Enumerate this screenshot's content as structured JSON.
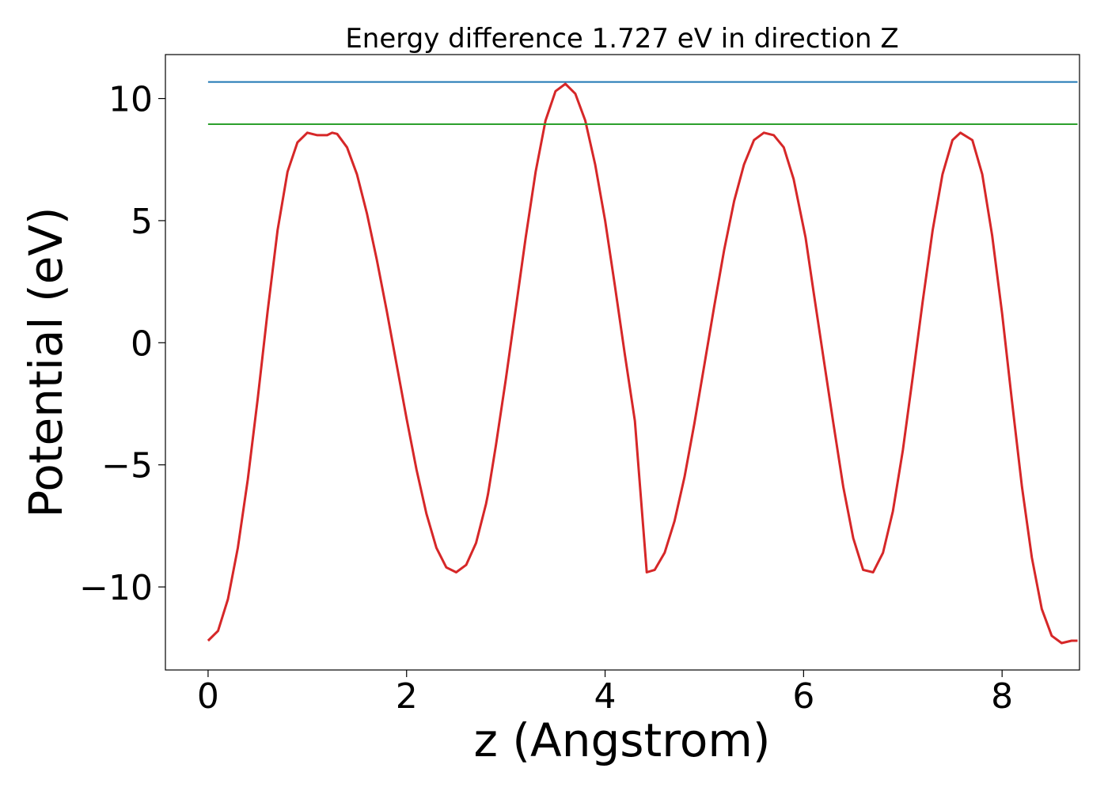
{
  "chart_data": {
    "type": "line",
    "title": "Energy difference 1.727 eV in direction Z",
    "xlabel": "z (Angstrom)",
    "ylabel": "Potential (eV)",
    "xlim": [
      -0.43,
      8.78
    ],
    "ylim": [
      -13.4,
      11.8
    ],
    "x_ticks": [
      0,
      2,
      4,
      6,
      8
    ],
    "x_tick_labels": [
      "0",
      "2",
      "4",
      "6",
      "8"
    ],
    "y_ticks": [
      -10,
      -5,
      0,
      5,
      10
    ],
    "y_tick_labels": [
      "−10",
      "−5",
      "0",
      "5",
      "10"
    ],
    "grid": false,
    "legend": "none",
    "series": [
      {
        "color": "#d62728",
        "style": "curve",
        "x": [
          0.0,
          0.1,
          0.2,
          0.3,
          0.4,
          0.5,
          0.6,
          0.7,
          0.8,
          0.9,
          1.0,
          1.1,
          1.2,
          1.25,
          1.3,
          1.4,
          1.5,
          1.6,
          1.7,
          1.8,
          1.9,
          2.0,
          2.1,
          2.2,
          2.3,
          2.4,
          2.5,
          2.6,
          2.7,
          2.8,
          2.82,
          2.9,
          3.0,
          3.1,
          3.2,
          3.3,
          3.4,
          3.5,
          3.6,
          3.7,
          3.8,
          3.9,
          4.0,
          4.1,
          4.2,
          4.3,
          4.42,
          4.5,
          4.6,
          4.7,
          4.8,
          4.9,
          5.0,
          5.1,
          5.2,
          5.3,
          5.4,
          5.5,
          5.6,
          5.7,
          5.8,
          5.9,
          6.0,
          6.02,
          6.1,
          6.2,
          6.3,
          6.4,
          6.5,
          6.6,
          6.7,
          6.8,
          6.9,
          7.0,
          7.1,
          7.2,
          7.3,
          7.4,
          7.5,
          7.58,
          7.7,
          7.8,
          7.9,
          8.0,
          8.1,
          8.2,
          8.3,
          8.4,
          8.5,
          8.6,
          8.7,
          8.76
        ],
        "y": [
          -12.2,
          -11.8,
          -10.5,
          -8.4,
          -5.6,
          -2.3,
          1.3,
          4.6,
          7.0,
          8.2,
          8.6,
          8.5,
          8.5,
          8.6,
          8.55,
          8.0,
          6.9,
          5.3,
          3.4,
          1.3,
          -0.9,
          -3.1,
          -5.2,
          -7.0,
          -8.4,
          -9.2,
          -9.4,
          -9.1,
          -8.2,
          -6.6,
          -6.2,
          -4.2,
          -1.5,
          1.4,
          4.3,
          7.0,
          9.1,
          10.3,
          10.6,
          10.2,
          9.1,
          7.3,
          5.0,
          2.3,
          -0.5,
          -3.2,
          -9.4,
          -9.3,
          -8.6,
          -7.3,
          -5.5,
          -3.3,
          -0.9,
          1.5,
          3.8,
          5.8,
          7.3,
          8.3,
          8.6,
          8.5,
          8.0,
          6.7,
          4.7,
          4.3,
          2.1,
          -0.6,
          -3.3,
          -5.9,
          -8.0,
          -9.3,
          -9.4,
          -8.6,
          -6.9,
          -4.4,
          -1.4,
          1.7,
          4.6,
          6.9,
          8.3,
          8.6,
          8.3,
          6.9,
          4.4,
          1.2,
          -2.4,
          -5.9,
          -8.8,
          -10.9,
          -12.0,
          -12.3,
          -12.2,
          -12.2
        ]
      },
      {
        "color": "#1f77b4",
        "style": "hline",
        "x": [
          0.0,
          8.76
        ],
        "y": [
          10.68,
          10.68
        ]
      },
      {
        "color": "#2ca02c",
        "style": "hline",
        "x": [
          0.0,
          8.76
        ],
        "y": [
          8.95,
          8.95
        ]
      }
    ]
  }
}
